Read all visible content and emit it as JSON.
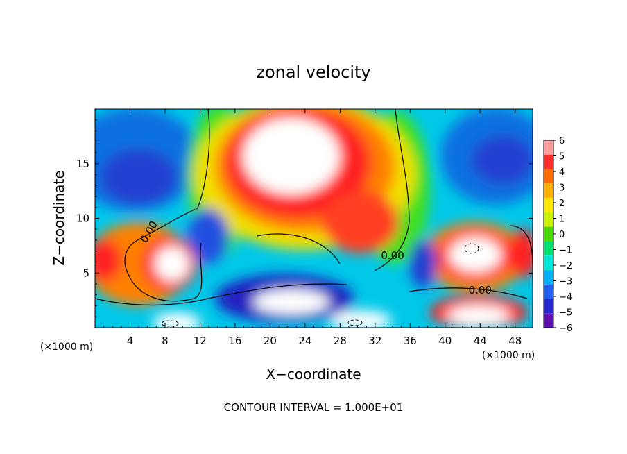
{
  "chart_data": {
    "type": "heatmap",
    "title": "zonal velocity",
    "xlabel": "X−coordinate",
    "ylabel": "Z−coordinate",
    "x_unit_left": "(×1000 m)",
    "x_unit_right": "(×1000 m)",
    "footer": "CONTOUR INTERVAL = 1.000E+01",
    "xlim": [
      0,
      50
    ],
    "ylim": [
      0,
      20
    ],
    "x_ticks": [
      4,
      8,
      12,
      16,
      20,
      24,
      28,
      32,
      36,
      40,
      44,
      48
    ],
    "y_ticks": [
      5,
      10,
      15
    ],
    "colorbar": {
      "levels": [
        6,
        5,
        4,
        3,
        2,
        1,
        0,
        -1,
        -2,
        -3,
        -4,
        -5,
        -6
      ],
      "colors": [
        "#ff9c9c",
        "#ff2e2e",
        "#ff6a00",
        "#ffb000",
        "#ffe800",
        "#c8f000",
        "#4ad800",
        "#00e070",
        "#00e8d8",
        "#00b0f8",
        "#2060f0",
        "#2828d0",
        "#6010b0"
      ]
    },
    "contour_labels": [
      {
        "text": "0.00",
        "x": 6.5,
        "z": 8.6,
        "angle": -60
      },
      {
        "text": "0.00",
        "x": 34.0,
        "z": 6.3,
        "angle": 0
      },
      {
        "text": "0.00",
        "x": 44.0,
        "z": 3.1,
        "angle": 0
      }
    ],
    "features": [
      {
        "kind": "positive-core",
        "x": 23,
        "z": 14.5,
        "u": 7
      },
      {
        "kind": "positive-core",
        "x": 9,
        "z": 6,
        "u": 6.5
      },
      {
        "kind": "positive-core",
        "x": 43,
        "z": 7.5,
        "u": 6.5
      },
      {
        "kind": "negative-core",
        "x": 5,
        "z": 15,
        "u": -4
      },
      {
        "kind": "negative-core",
        "x": 46,
        "z": 15,
        "u": -4.5
      },
      {
        "kind": "negative-core",
        "x": 22,
        "z": 3,
        "u": -5
      }
    ]
  }
}
